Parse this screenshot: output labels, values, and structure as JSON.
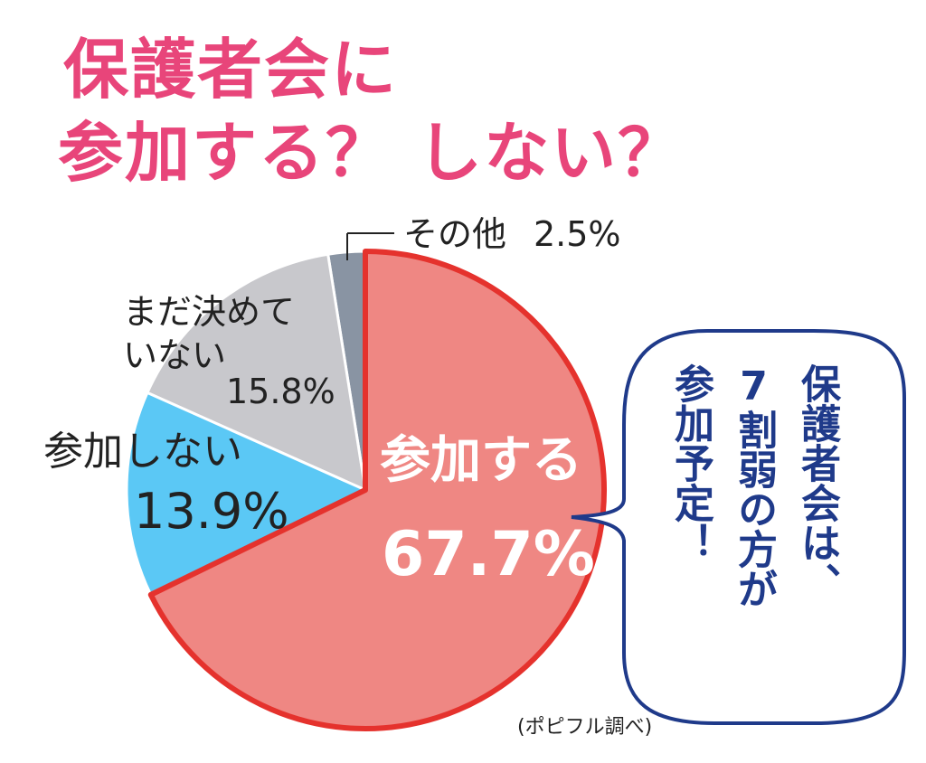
{
  "title": {
    "line1": "保護者会に",
    "line2": "参加する？ しない？"
  },
  "chart_data": {
    "type": "pie",
    "slices": [
      {
        "label": "参加する",
        "value": 67.7,
        "value_label": "67.7%",
        "color": "#ef8783",
        "stroke": "#e5322d"
      },
      {
        "label": "参加しない",
        "value": 13.9,
        "value_label": "13.9%",
        "color": "#5bc8f5",
        "stroke": "#ffffff"
      },
      {
        "label_line1": "まだ決めて",
        "label_line2": "いない",
        "label": "まだ決めていない",
        "value": 15.8,
        "value_label": "15.8%",
        "color": "#c8c8cc",
        "stroke": "#ffffff"
      },
      {
        "label": "その他",
        "value": 2.5,
        "value_label": "2.5%",
        "color": "#8994a3",
        "stroke": "#ffffff"
      }
    ],
    "start_angle_deg": 0,
    "direction": "clockwise"
  },
  "bubble": {
    "col1": "保護者会は、",
    "col2": "7割弱の方が",
    "col3": "参加予定！",
    "border_color": "#1f3a8a",
    "text_color": "#1f3a8a"
  },
  "source": "(ポピフル調べ)",
  "colors": {
    "title": "#e8457a",
    "label_text": "#222222",
    "main_label_text": "#ffffff"
  }
}
